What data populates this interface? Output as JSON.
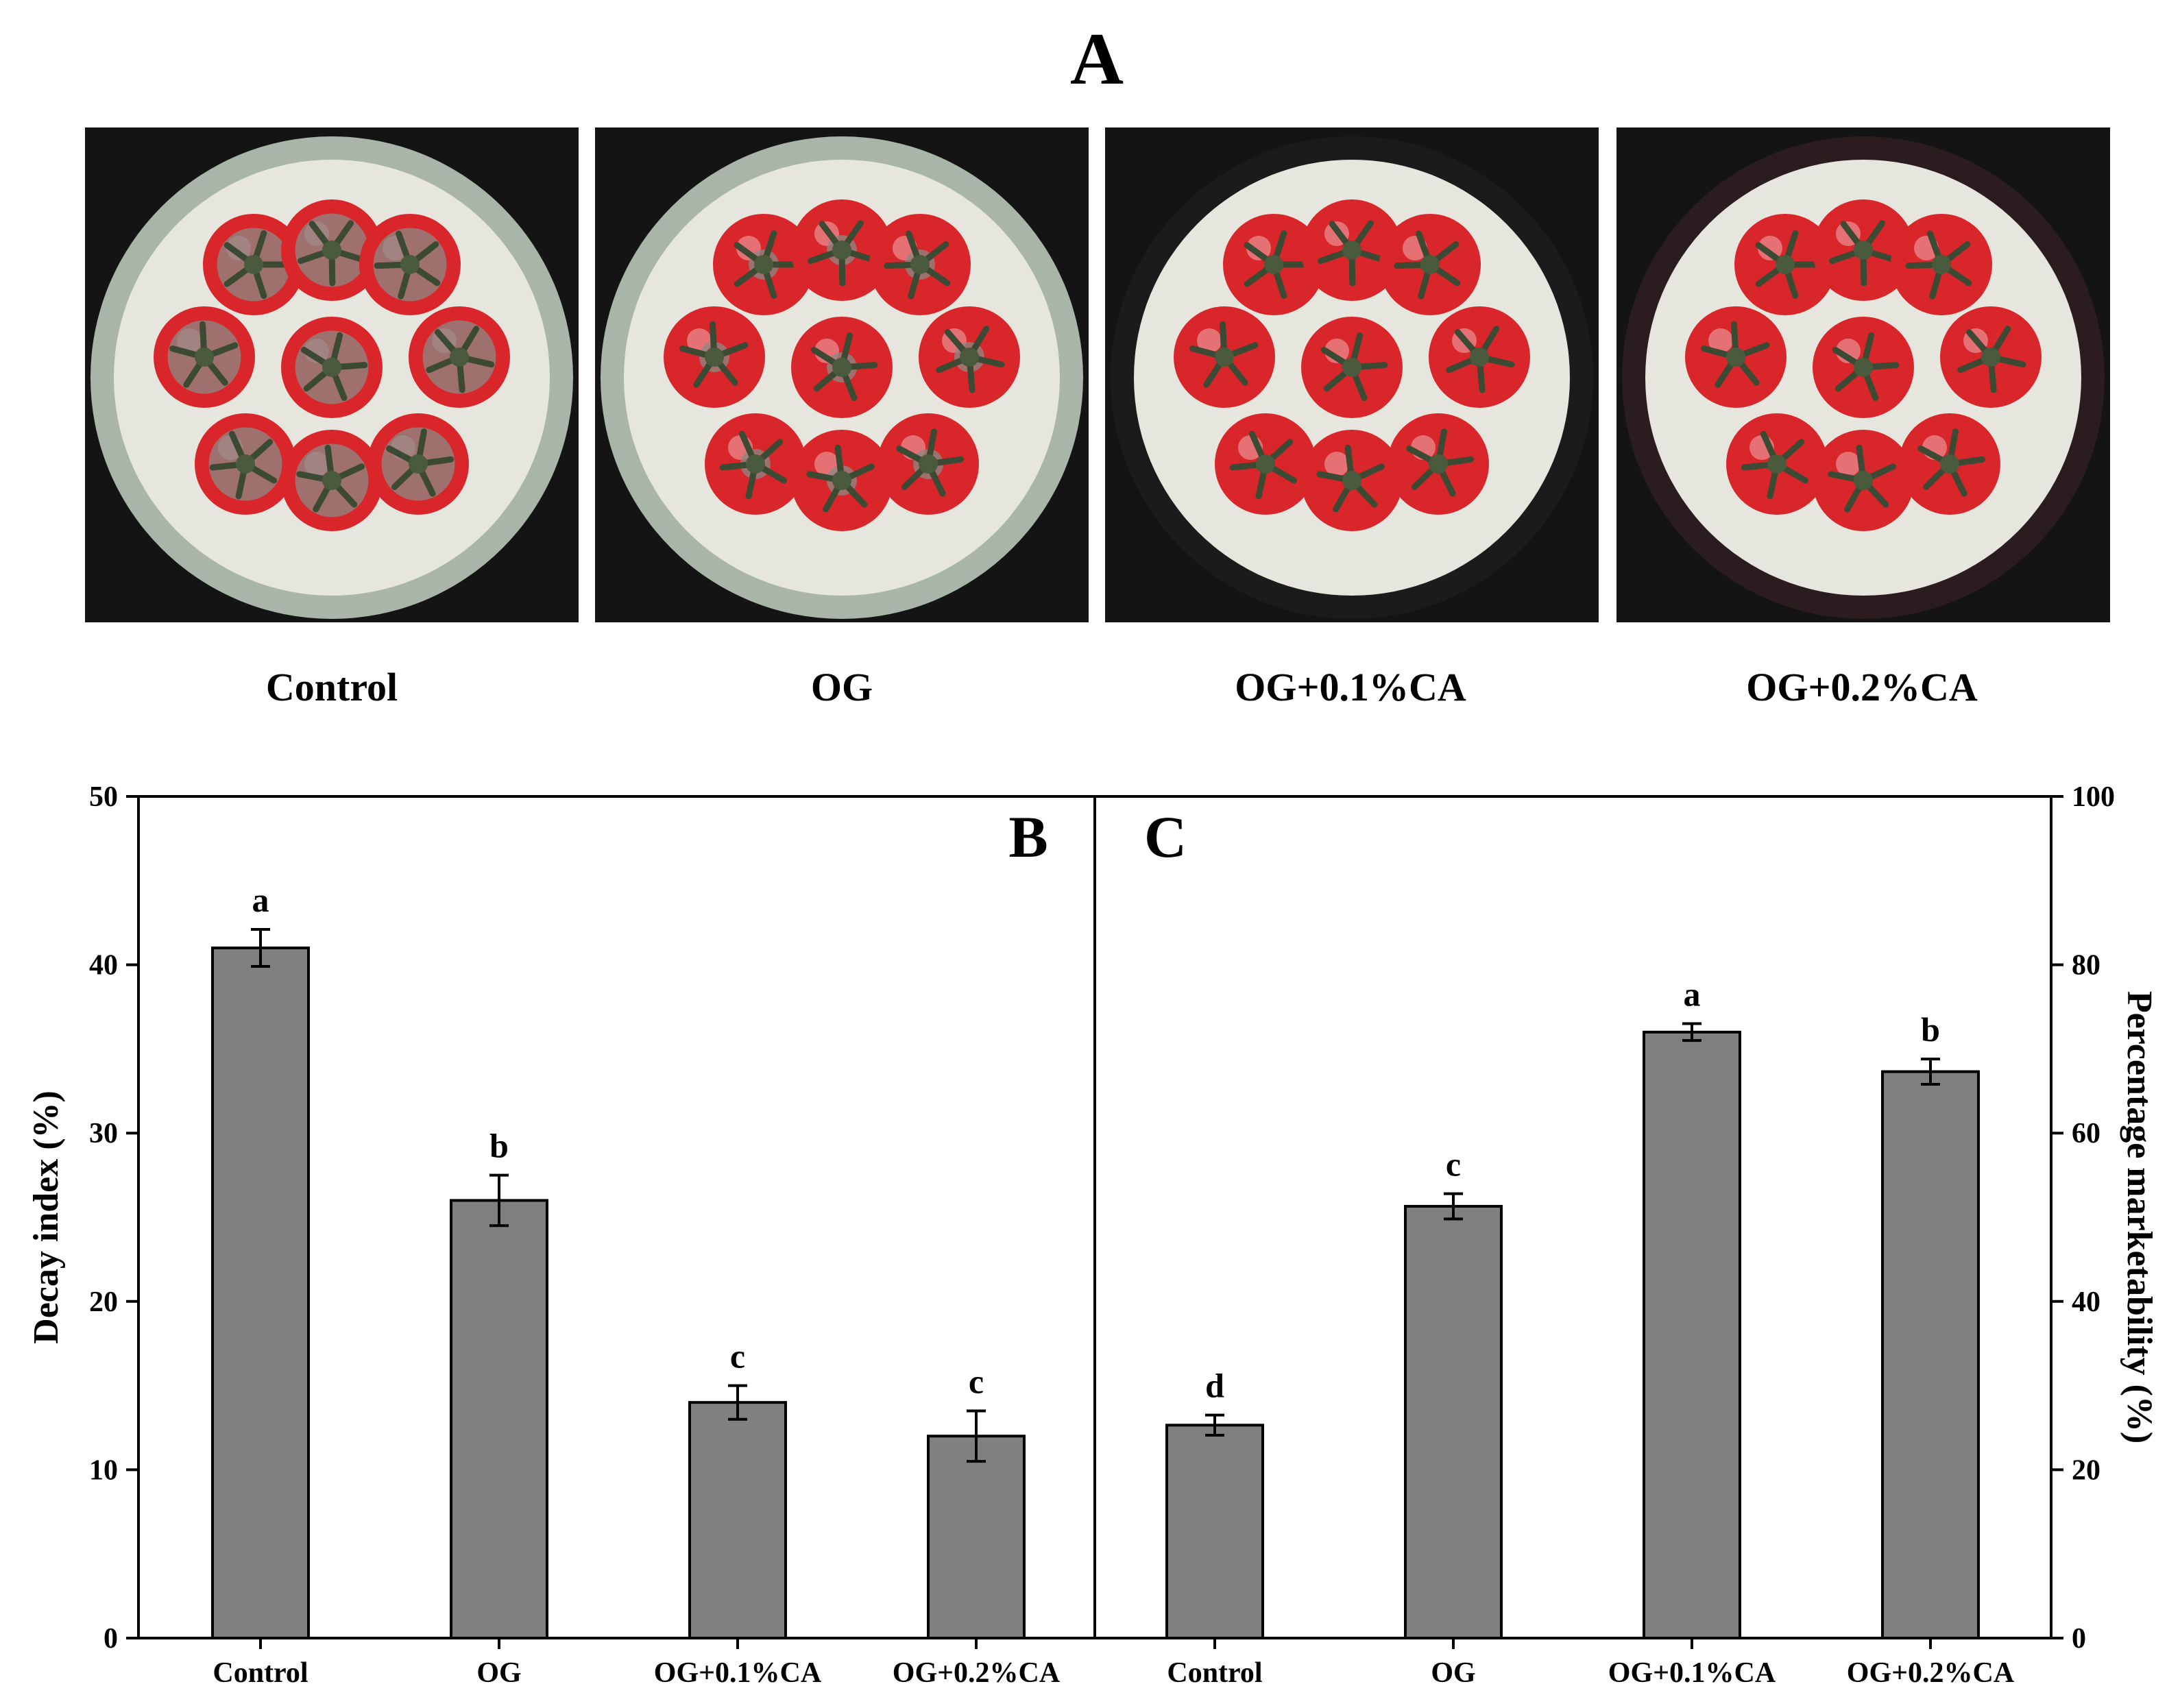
{
  "figure": {
    "panel_a_letter": "A",
    "photo_labels": [
      "Control",
      "OG",
      "OG+0.1%CA",
      "OG+0.2%CA"
    ],
    "photo_rim_colors": [
      "#a9b5a8",
      "#a9b5a8",
      "#1b1b1b",
      "#2a1c1f"
    ],
    "photo_background": "#141414",
    "dish_inner_color": "#e7e6de",
    "tomato_color": "#d9262b",
    "mould_color": "#8a8a86",
    "mould_level": [
      0.85,
      0.35,
      0.05,
      0.05
    ]
  },
  "chart_data": [
    {
      "type": "bar",
      "panel_letter": "B",
      "categories": [
        "Control",
        "OG",
        "OG+0.1%CA",
        "OG+0.2%CA"
      ],
      "values": [
        41,
        26,
        14,
        12
      ],
      "errors": [
        1.1,
        1.5,
        1.0,
        1.5
      ],
      "significance": [
        "a",
        "b",
        "c",
        "c"
      ],
      "ylabel": "Decay index (%)",
      "ylim": [
        0,
        50
      ],
      "yticks": [
        0,
        10,
        20,
        30,
        40,
        50
      ],
      "y_axis_side": "left",
      "bar_color": "#808080",
      "grid": false
    },
    {
      "type": "bar",
      "panel_letter": "C",
      "categories": [
        "Control",
        "OG",
        "OG+0.1%CA",
        "OG+0.2%CA"
      ],
      "values": [
        25.3,
        51.3,
        72,
        67.3
      ],
      "errors": [
        1.2,
        1.5,
        1.0,
        1.5
      ],
      "significance": [
        "d",
        "c",
        "a",
        "b"
      ],
      "ylabel": "Percentage marketability (%)",
      "ylim": [
        0,
        100
      ],
      "yticks": [
        0,
        20,
        40,
        60,
        80,
        100
      ],
      "y_axis_side": "right",
      "bar_color": "#808080",
      "grid": false
    }
  ]
}
